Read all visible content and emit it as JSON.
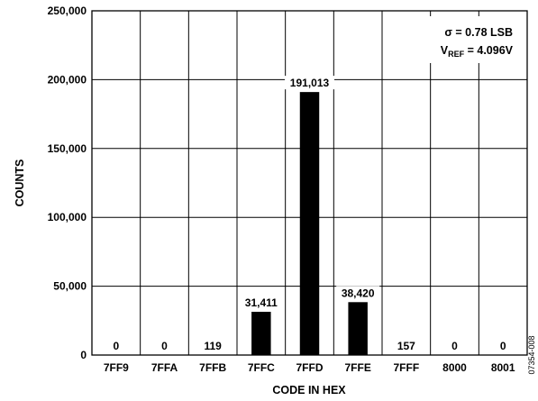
{
  "chart_data": {
    "type": "bar",
    "categories": [
      "7FF9",
      "7FFA",
      "7FFB",
      "7FFC",
      "7FFD",
      "7FFE",
      "7FFF",
      "8000",
      "8001"
    ],
    "values": [
      0,
      0,
      119,
      31411,
      191013,
      38420,
      157,
      0,
      0
    ],
    "data_labels": [
      "0",
      "0",
      "119",
      "31,411",
      "191,013",
      "38,420",
      "157",
      "0",
      "0"
    ],
    "y_ticks": [
      0,
      50000,
      100000,
      150000,
      200000,
      250000
    ],
    "y_tick_labels": [
      "0",
      "50,000",
      "100,000",
      "150,000",
      "200,000",
      "250,000"
    ],
    "ylim": [
      0,
      250000
    ],
    "xlabel": "CODE IN HEX",
    "ylabel": "COUNTS",
    "grid": true,
    "bar_color": "#000000",
    "annotations": {
      "sigma": "σ = 0.78 LSB",
      "vref_prefix": "V",
      "vref_sub": "REF",
      "vref_suffix": " = 4.096V"
    },
    "figure_id": "07354-008"
  }
}
